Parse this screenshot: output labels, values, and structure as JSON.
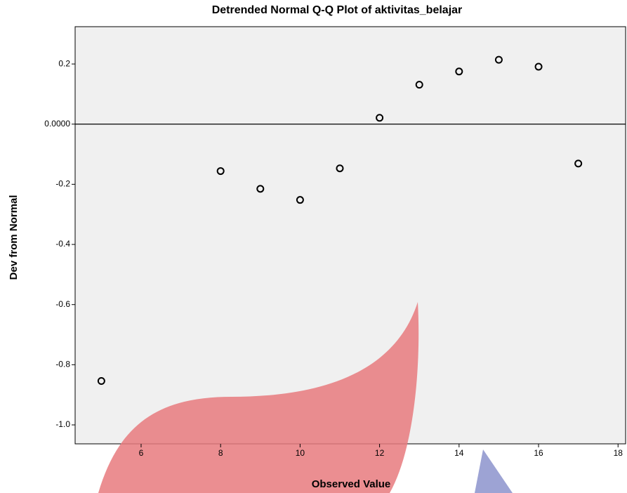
{
  "chart_data": {
    "type": "scatter",
    "title": "Detrended Normal Q-Q Plot of aktivitas_belajar",
    "x_label": "Observed Value",
    "y_label": "Dev from Normal",
    "x": [
      5,
      8,
      9,
      10,
      11,
      12,
      13,
      14,
      15,
      16,
      17
    ],
    "values": [
      -0.854,
      -0.156,
      -0.215,
      -0.252,
      -0.147,
      0.021,
      0.131,
      0.175,
      0.214,
      0.191,
      -0.131
    ],
    "color": "#000000",
    "xlim": [
      4.34,
      18.19
    ],
    "ylim": [
      -1.063,
      0.324
    ],
    "xticks": [
      6,
      8,
      10,
      12,
      14,
      16,
      18
    ],
    "yticks": [
      0.2,
      {
        "value": 0,
        "label": "0.0000"
      },
      -0.2,
      -0.4,
      -0.6,
      -0.8,
      {
        "value": -1,
        "label": "-1.0"
      }
    ],
    "reference_y": 0,
    "grid": false
  }
}
